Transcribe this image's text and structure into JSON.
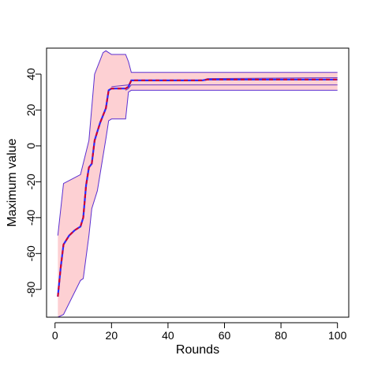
{
  "chart_data": {
    "type": "line",
    "title": "",
    "xlabel": "Rounds",
    "ylabel": "Maximum value",
    "xlim": [
      -3,
      104
    ],
    "ylim": [
      -95.5,
      54.5
    ],
    "x_ticks": [
      0,
      20,
      40,
      60,
      80,
      100
    ],
    "y_ticks": [
      -80,
      -60,
      -40,
      -20,
      0,
      20,
      40
    ],
    "grid": false,
    "legend": "none",
    "colors": {
      "band_fill": "#fdd0d3",
      "outer_edge": "#5b2fd1",
      "mean_line": "#2b2bff",
      "median_line": "#d4002a",
      "inner_edge": "#6a39c4"
    },
    "series": [
      {
        "role": "upper-bound",
        "x": [
          1,
          3,
          9,
          12,
          14,
          17,
          18,
          20,
          25,
          26,
          27,
          100
        ],
        "y": [
          -50,
          -21,
          -16,
          3,
          40,
          52,
          53,
          51,
          51,
          47,
          41,
          41
        ]
      },
      {
        "role": "lower-bound",
        "x": [
          1,
          3,
          9,
          10,
          12,
          13,
          15,
          18,
          19,
          20,
          25,
          26,
          27,
          100
        ],
        "y": [
          -95.5,
          -94,
          -75,
          -74,
          -50,
          -35,
          -25,
          4,
          14,
          15,
          15,
          30,
          31,
          31
        ]
      },
      {
        "role": "upper-inner",
        "x": [
          20,
          26,
          27,
          52,
          54,
          100
        ],
        "y": [
          33,
          34,
          36.5,
          36.5,
          37.5,
          38
        ]
      },
      {
        "role": "lower-inner",
        "x": [
          25,
          26,
          27,
          100
        ],
        "y": [
          31,
          32,
          34,
          34
        ]
      },
      {
        "role": "central",
        "x": [
          1,
          2,
          3,
          5,
          7,
          9,
          10,
          11,
          12,
          13,
          14,
          15,
          16,
          17,
          18,
          19,
          20,
          25,
          26,
          27,
          50,
          52,
          54,
          100
        ],
        "y": [
          -84,
          -68,
          -55,
          -50,
          -47,
          -45,
          -40,
          -22,
          -12,
          -10,
          3,
          8,
          13,
          17,
          21,
          31,
          32,
          32,
          33,
          36.5,
          36.5,
          36.5,
          37,
          37
        ]
      }
    ]
  }
}
